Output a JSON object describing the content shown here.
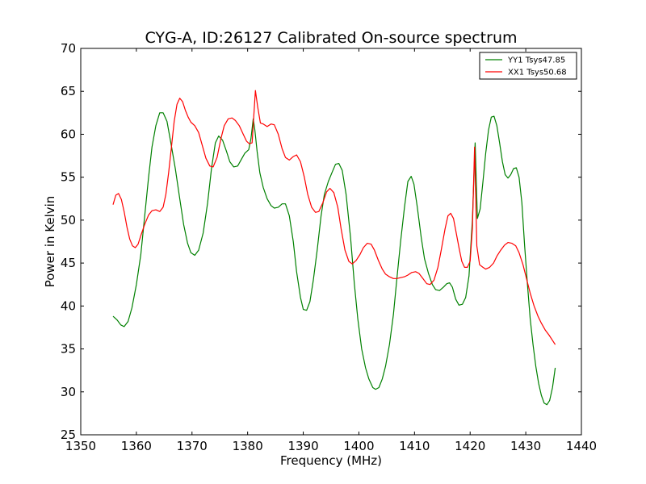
{
  "chart_data": {
    "type": "line",
    "title": "CYG-A, ID:26127 Calibrated On-source spectrum",
    "xlabel": "Frequency (MHz)",
    "ylabel": "Power in Kelvin",
    "xlim": [
      1350,
      1440
    ],
    "ylim": [
      25,
      70
    ],
    "xticks": [
      1350,
      1360,
      1370,
      1380,
      1390,
      1400,
      1410,
      1420,
      1430,
      1440
    ],
    "yticks": [
      25,
      30,
      35,
      40,
      45,
      50,
      55,
      60,
      65,
      70
    ],
    "grid": false,
    "legend_position": "top-right",
    "series": [
      {
        "name": "YY1 Tsys47.85",
        "color": "#008000",
        "points": [
          [
            1355.8,
            38.8
          ],
          [
            1356.5,
            38.4
          ],
          [
            1357.2,
            37.8
          ],
          [
            1357.8,
            37.6
          ],
          [
            1358.5,
            38.2
          ],
          [
            1359.2,
            39.8
          ],
          [
            1360.0,
            42.5
          ],
          [
            1360.8,
            46.0
          ],
          [
            1361.5,
            50.5
          ],
          [
            1362.2,
            55.0
          ],
          [
            1362.8,
            58.5
          ],
          [
            1363.5,
            61.0
          ],
          [
            1364.2,
            62.5
          ],
          [
            1364.8,
            62.5
          ],
          [
            1365.5,
            61.5
          ],
          [
            1366.2,
            59.0
          ],
          [
            1367.0,
            56.0
          ],
          [
            1367.8,
            52.5
          ],
          [
            1368.5,
            49.5
          ],
          [
            1369.2,
            47.3
          ],
          [
            1369.8,
            46.2
          ],
          [
            1370.5,
            45.9
          ],
          [
            1371.2,
            46.5
          ],
          [
            1372.0,
            48.5
          ],
          [
            1372.8,
            52.0
          ],
          [
            1373.5,
            56.0
          ],
          [
            1374.2,
            59.0
          ],
          [
            1374.8,
            59.8
          ],
          [
            1375.5,
            59.3
          ],
          [
            1376.2,
            58.0
          ],
          [
            1376.8,
            56.8
          ],
          [
            1377.5,
            56.2
          ],
          [
            1378.2,
            56.3
          ],
          [
            1378.8,
            57.0
          ],
          [
            1379.5,
            57.8
          ],
          [
            1380.2,
            58.2
          ],
          [
            1380.6,
            59.5
          ],
          [
            1381.0,
            61.8
          ],
          [
            1381.3,
            60.5
          ],
          [
            1381.7,
            58.0
          ],
          [
            1382.2,
            55.5
          ],
          [
            1382.8,
            53.8
          ],
          [
            1383.5,
            52.5
          ],
          [
            1384.2,
            51.7
          ],
          [
            1384.8,
            51.4
          ],
          [
            1385.5,
            51.5
          ],
          [
            1386.2,
            51.9
          ],
          [
            1386.8,
            51.9
          ],
          [
            1387.5,
            50.5
          ],
          [
            1388.2,
            47.5
          ],
          [
            1388.8,
            44.0
          ],
          [
            1389.5,
            41.0
          ],
          [
            1390.0,
            39.6
          ],
          [
            1390.6,
            39.5
          ],
          [
            1391.2,
            40.5
          ],
          [
            1391.8,
            43.0
          ],
          [
            1392.5,
            46.5
          ],
          [
            1393.2,
            50.5
          ],
          [
            1393.8,
            53.0
          ],
          [
            1394.5,
            54.5
          ],
          [
            1395.2,
            55.6
          ],
          [
            1395.8,
            56.5
          ],
          [
            1396.4,
            56.6
          ],
          [
            1397.0,
            55.8
          ],
          [
            1397.7,
            53.0
          ],
          [
            1398.5,
            48.0
          ],
          [
            1399.2,
            42.5
          ],
          [
            1399.8,
            38.5
          ],
          [
            1400.5,
            35.0
          ],
          [
            1401.2,
            32.8
          ],
          [
            1401.8,
            31.5
          ],
          [
            1402.5,
            30.5
          ],
          [
            1403.0,
            30.3
          ],
          [
            1403.6,
            30.5
          ],
          [
            1404.2,
            31.5
          ],
          [
            1404.8,
            33.0
          ],
          [
            1405.5,
            35.5
          ],
          [
            1406.2,
            39.0
          ],
          [
            1406.8,
            43.0
          ],
          [
            1407.5,
            47.5
          ],
          [
            1408.2,
            51.5
          ],
          [
            1408.8,
            54.5
          ],
          [
            1409.4,
            55.1
          ],
          [
            1409.9,
            54.2
          ],
          [
            1410.5,
            51.5
          ],
          [
            1411.2,
            48.0
          ],
          [
            1411.8,
            45.5
          ],
          [
            1412.5,
            43.8
          ],
          [
            1413.2,
            42.5
          ],
          [
            1413.8,
            41.9
          ],
          [
            1414.5,
            41.8
          ],
          [
            1415.2,
            42.2
          ],
          [
            1415.8,
            42.6
          ],
          [
            1416.3,
            42.7
          ],
          [
            1416.8,
            42.2
          ],
          [
            1417.4,
            40.8
          ],
          [
            1418.0,
            40.1
          ],
          [
            1418.6,
            40.2
          ],
          [
            1419.2,
            41.0
          ],
          [
            1419.8,
            43.5
          ],
          [
            1420.4,
            50.0
          ],
          [
            1420.9,
            59.0
          ],
          [
            1421.3,
            50.2
          ],
          [
            1421.8,
            51.3
          ],
          [
            1422.3,
            54.5
          ],
          [
            1422.8,
            57.8
          ],
          [
            1423.3,
            60.5
          ],
          [
            1423.8,
            62.0
          ],
          [
            1424.3,
            62.1
          ],
          [
            1424.8,
            61.0
          ],
          [
            1425.3,
            59.0
          ],
          [
            1425.8,
            56.8
          ],
          [
            1426.3,
            55.3
          ],
          [
            1426.8,
            54.9
          ],
          [
            1427.3,
            55.3
          ],
          [
            1427.8,
            56.0
          ],
          [
            1428.3,
            56.1
          ],
          [
            1428.8,
            55.0
          ],
          [
            1429.3,
            52.0
          ],
          [
            1429.8,
            47.0
          ],
          [
            1430.3,
            42.5
          ],
          [
            1430.8,
            38.5
          ],
          [
            1431.3,
            35.5
          ],
          [
            1431.8,
            33.0
          ],
          [
            1432.3,
            31.0
          ],
          [
            1432.8,
            29.6
          ],
          [
            1433.3,
            28.7
          ],
          [
            1433.8,
            28.5
          ],
          [
            1434.3,
            29.0
          ],
          [
            1434.8,
            30.5
          ],
          [
            1435.3,
            32.8
          ]
        ]
      },
      {
        "name": "XX1 Tsys50.68",
        "color": "#ff0000",
        "points": [
          [
            1355.8,
            51.8
          ],
          [
            1356.3,
            52.9
          ],
          [
            1356.8,
            53.1
          ],
          [
            1357.3,
            52.4
          ],
          [
            1357.8,
            51.0
          ],
          [
            1358.3,
            49.2
          ],
          [
            1358.8,
            47.8
          ],
          [
            1359.3,
            47.0
          ],
          [
            1359.8,
            46.8
          ],
          [
            1360.3,
            47.2
          ],
          [
            1360.8,
            48.2
          ],
          [
            1361.5,
            49.5
          ],
          [
            1362.2,
            50.6
          ],
          [
            1362.8,
            51.1
          ],
          [
            1363.5,
            51.2
          ],
          [
            1364.2,
            51.0
          ],
          [
            1364.8,
            51.5
          ],
          [
            1365.3,
            53.0
          ],
          [
            1365.8,
            55.5
          ],
          [
            1366.3,
            58.5
          ],
          [
            1366.8,
            61.5
          ],
          [
            1367.3,
            63.5
          ],
          [
            1367.8,
            64.2
          ],
          [
            1368.3,
            63.8
          ],
          [
            1368.8,
            62.8
          ],
          [
            1369.3,
            62.0
          ],
          [
            1369.8,
            61.4
          ],
          [
            1370.5,
            61.0
          ],
          [
            1371.2,
            60.2
          ],
          [
            1371.8,
            58.8
          ],
          [
            1372.5,
            57.2
          ],
          [
            1373.2,
            56.3
          ],
          [
            1373.8,
            56.2
          ],
          [
            1374.5,
            57.3
          ],
          [
            1375.2,
            59.5
          ],
          [
            1375.8,
            61.0
          ],
          [
            1376.5,
            61.8
          ],
          [
            1377.2,
            61.9
          ],
          [
            1377.8,
            61.6
          ],
          [
            1378.5,
            61.0
          ],
          [
            1379.2,
            60.0
          ],
          [
            1379.8,
            59.2
          ],
          [
            1380.3,
            58.9
          ],
          [
            1380.8,
            59.0
          ],
          [
            1381.1,
            62.0
          ],
          [
            1381.4,
            65.1
          ],
          [
            1381.8,
            63.2
          ],
          [
            1382.3,
            61.3
          ],
          [
            1382.8,
            61.2
          ],
          [
            1383.5,
            60.9
          ],
          [
            1384.2,
            61.2
          ],
          [
            1384.8,
            61.1
          ],
          [
            1385.5,
            60.0
          ],
          [
            1386.2,
            58.3
          ],
          [
            1386.8,
            57.3
          ],
          [
            1387.5,
            57.0
          ],
          [
            1388.2,
            57.4
          ],
          [
            1388.8,
            57.6
          ],
          [
            1389.5,
            56.8
          ],
          [
            1390.2,
            55.0
          ],
          [
            1390.8,
            53.0
          ],
          [
            1391.5,
            51.5
          ],
          [
            1392.2,
            50.9
          ],
          [
            1392.8,
            51.0
          ],
          [
            1393.5,
            52.0
          ],
          [
            1394.2,
            53.3
          ],
          [
            1394.8,
            53.7
          ],
          [
            1395.5,
            53.2
          ],
          [
            1396.2,
            51.5
          ],
          [
            1396.8,
            49.0
          ],
          [
            1397.5,
            46.5
          ],
          [
            1398.2,
            45.2
          ],
          [
            1398.8,
            44.9
          ],
          [
            1399.5,
            45.3
          ],
          [
            1400.2,
            46.0
          ],
          [
            1400.8,
            46.8
          ],
          [
            1401.5,
            47.3
          ],
          [
            1402.2,
            47.2
          ],
          [
            1402.8,
            46.5
          ],
          [
            1403.5,
            45.3
          ],
          [
            1404.2,
            44.3
          ],
          [
            1404.8,
            43.7
          ],
          [
            1405.5,
            43.4
          ],
          [
            1406.2,
            43.2
          ],
          [
            1406.8,
            43.2
          ],
          [
            1407.5,
            43.3
          ],
          [
            1408.2,
            43.4
          ],
          [
            1408.8,
            43.6
          ],
          [
            1409.5,
            43.9
          ],
          [
            1410.2,
            44.0
          ],
          [
            1410.8,
            43.8
          ],
          [
            1411.5,
            43.2
          ],
          [
            1412.2,
            42.6
          ],
          [
            1412.8,
            42.5
          ],
          [
            1413.5,
            43.0
          ],
          [
            1414.2,
            44.5
          ],
          [
            1414.8,
            46.5
          ],
          [
            1415.5,
            49.0
          ],
          [
            1416.0,
            50.5
          ],
          [
            1416.5,
            50.8
          ],
          [
            1417.0,
            50.2
          ],
          [
            1417.5,
            48.5
          ],
          [
            1418.0,
            46.8
          ],
          [
            1418.5,
            45.2
          ],
          [
            1419.0,
            44.5
          ],
          [
            1419.5,
            44.5
          ],
          [
            1420.0,
            45.2
          ],
          [
            1420.4,
            49.0
          ],
          [
            1420.8,
            58.5
          ],
          [
            1421.2,
            47.0
          ],
          [
            1421.7,
            44.8
          ],
          [
            1422.3,
            44.5
          ],
          [
            1422.8,
            44.3
          ],
          [
            1423.5,
            44.5
          ],
          [
            1424.2,
            45.0
          ],
          [
            1424.8,
            45.8
          ],
          [
            1425.5,
            46.5
          ],
          [
            1426.2,
            47.1
          ],
          [
            1426.8,
            47.4
          ],
          [
            1427.5,
            47.3
          ],
          [
            1428.2,
            47.0
          ],
          [
            1428.8,
            46.2
          ],
          [
            1429.5,
            44.8
          ],
          [
            1430.2,
            43.0
          ],
          [
            1430.8,
            41.5
          ],
          [
            1431.5,
            40.0
          ],
          [
            1432.2,
            38.8
          ],
          [
            1432.8,
            38.0
          ],
          [
            1433.5,
            37.2
          ],
          [
            1434.2,
            36.6
          ],
          [
            1434.8,
            36.0
          ],
          [
            1435.3,
            35.5
          ]
        ]
      }
    ]
  }
}
